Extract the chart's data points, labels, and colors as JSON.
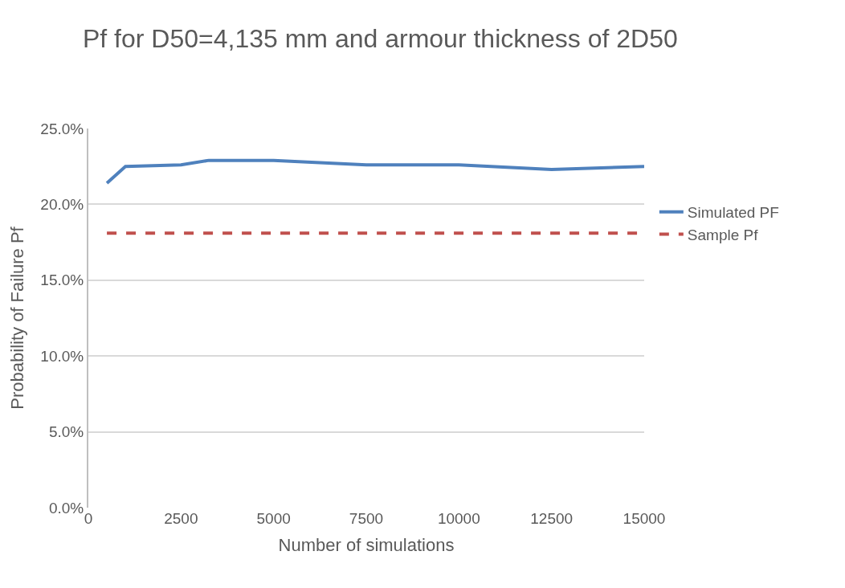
{
  "chart_data": {
    "type": "line",
    "title": "Pf for D50=4,135 mm and armour thickness of 2D50",
    "xlabel": "Number of simulations",
    "ylabel": "Probability of Failure Pf",
    "x": [
      500,
      1000,
      2500,
      3250,
      5000,
      7500,
      10000,
      12500,
      15000
    ],
    "series": [
      {
        "name": "Simulated PF",
        "color": "#4f81bd",
        "values": [
          0.214,
          0.225,
          0.226,
          0.229,
          0.229,
          0.226,
          0.226,
          0.223,
          0.225
        ]
      },
      {
        "name": "Sample Pf",
        "color": "#c0504d",
        "line_style": "dashed",
        "values": [
          0.181,
          0.181,
          0.181,
          0.181,
          0.181,
          0.181,
          0.181,
          0.181,
          0.181
        ]
      }
    ],
    "xlim": [
      0,
      15000
    ],
    "xticks": [
      0,
      2500,
      5000,
      7500,
      10000,
      12500,
      15000
    ],
    "ylim": [
      0,
      0.25
    ],
    "yticks": [
      {
        "value": 0,
        "label": "0.0%"
      },
      {
        "value": 0.05,
        "label": "5.0%"
      },
      {
        "value": 0.1,
        "label": "10.0%"
      },
      {
        "value": 0.15,
        "label": "15.0%"
      },
      {
        "value": 0.2,
        "label": "20.0%"
      },
      {
        "value": 0.25,
        "label": "25.0%"
      }
    ],
    "grid": "y",
    "legend": "right",
    "marker": "none",
    "line_style": "solid"
  }
}
